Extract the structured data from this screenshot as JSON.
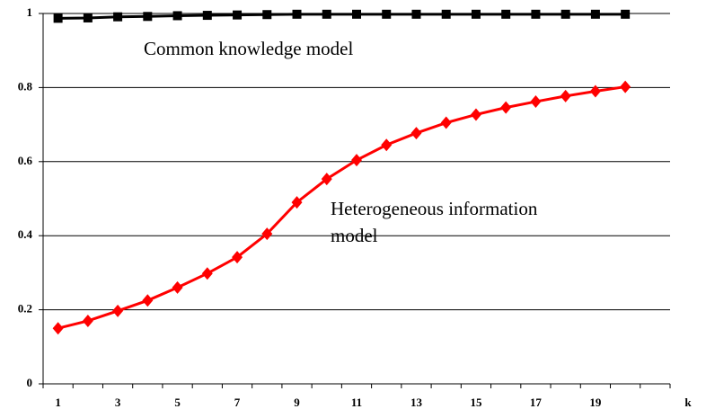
{
  "chart_data": {
    "type": "line",
    "categories": [
      1,
      null,
      3,
      null,
      5,
      null,
      7,
      null,
      9,
      null,
      11,
      null,
      13,
      null,
      15,
      null,
      17,
      null,
      19,
      null,
      null
    ],
    "x_label": "k",
    "series": [
      {
        "color": "#000000",
        "marker": "square",
        "values": [
          0.987,
          0.988,
          0.991,
          0.992,
          0.994,
          0.995,
          0.996,
          0.997,
          0.998,
          0.998,
          0.998,
          0.998,
          0.998,
          0.998,
          0.998,
          0.998,
          0.998,
          0.998,
          0.998,
          0.998,
          null
        ]
      },
      {
        "color": "#ff0000",
        "marker": "diamond",
        "values": [
          0.15,
          0.17,
          0.197,
          0.225,
          0.26,
          0.298,
          0.342,
          0.405,
          0.49,
          0.553,
          0.604,
          0.645,
          0.677,
          0.705,
          0.727,
          0.746,
          0.762,
          0.777,
          0.79,
          0.802,
          null
        ]
      }
    ],
    "annotations": [
      {
        "lines": [
          "Common knowledge model"
        ]
      },
      {
        "lines": [
          "Heterogeneous information",
          "model"
        ]
      }
    ],
    "ylim": [
      0,
      1
    ],
    "yticks": [
      0,
      0.2,
      0.4,
      0.6,
      0.8,
      1
    ],
    "grid": true
  }
}
